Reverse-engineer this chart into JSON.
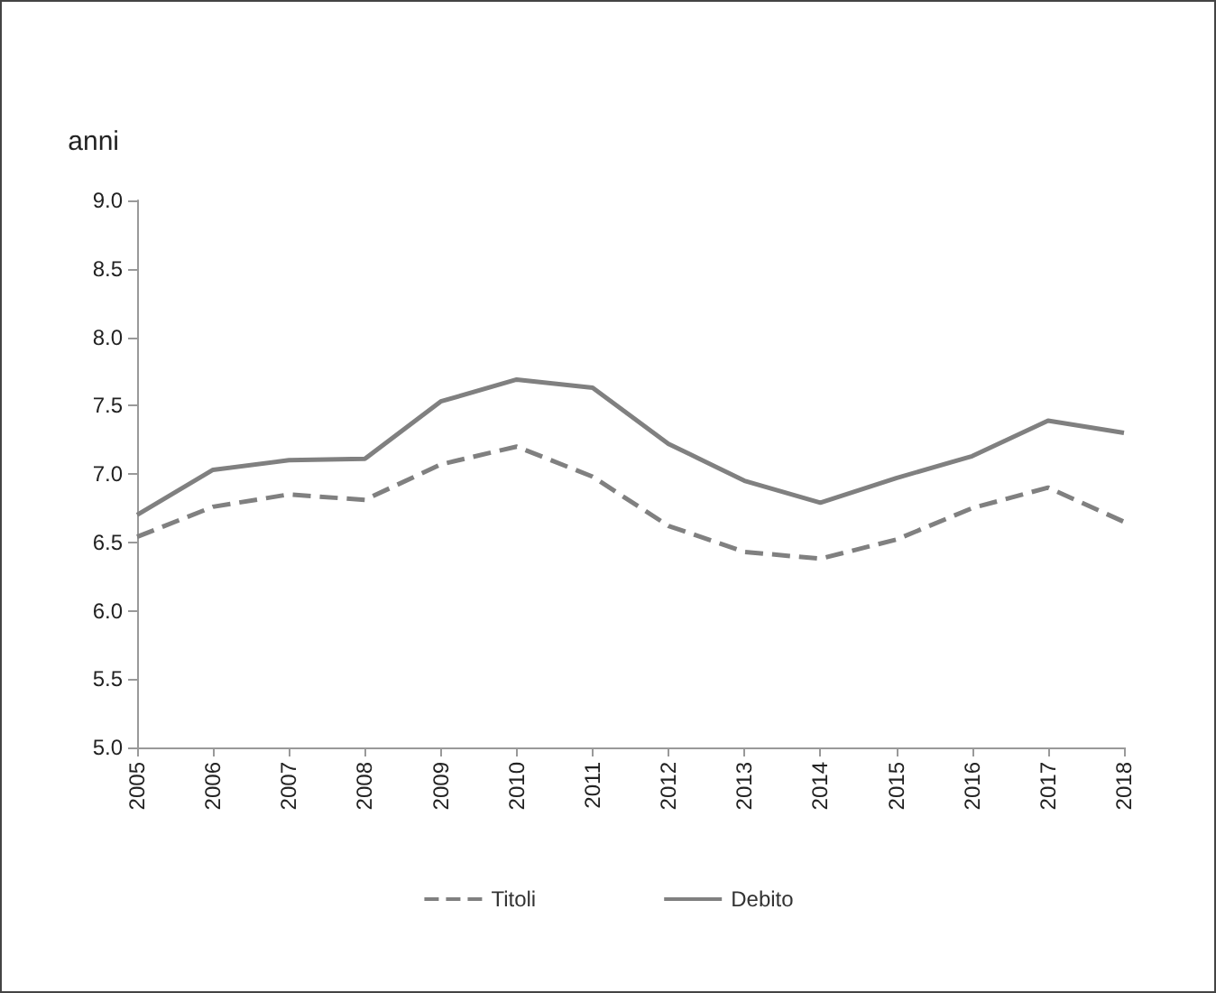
{
  "chart_data": {
    "type": "line",
    "ylabel": "anni",
    "categories": [
      "2005",
      "2006",
      "2007",
      "2008",
      "2009",
      "2010",
      "2011",
      "2012",
      "2013",
      "2014",
      "2015",
      "2016",
      "2017",
      "2018"
    ],
    "series": [
      {
        "name": "Titoli",
        "color": "#808080",
        "line_style": "dashed",
        "values": [
          6.54,
          6.76,
          6.85,
          6.81,
          7.07,
          7.2,
          6.98,
          6.62,
          6.43,
          6.38,
          6.52,
          6.75,
          6.9,
          6.65
        ]
      },
      {
        "name": "Debito",
        "color": "#808080",
        "line_style": "solid",
        "values": [
          6.7,
          7.03,
          7.1,
          7.11,
          7.53,
          7.69,
          7.63,
          7.22,
          6.95,
          6.79,
          6.97,
          7.13,
          7.39,
          7.3
        ]
      }
    ],
    "ylim": [
      5,
      9
    ],
    "yticks": [
      {
        "value": 5,
        "label": "5.0"
      },
      5.5,
      {
        "value": 6,
        "label": "6.0"
      },
      6.5,
      {
        "value": 7,
        "label": "7.0"
      },
      7.5,
      {
        "value": 8,
        "label": "8.0"
      },
      8.5,
      {
        "value": 9,
        "label": "9.0"
      }
    ],
    "grid": false,
    "legend": "bottom",
    "marker": "none"
  }
}
